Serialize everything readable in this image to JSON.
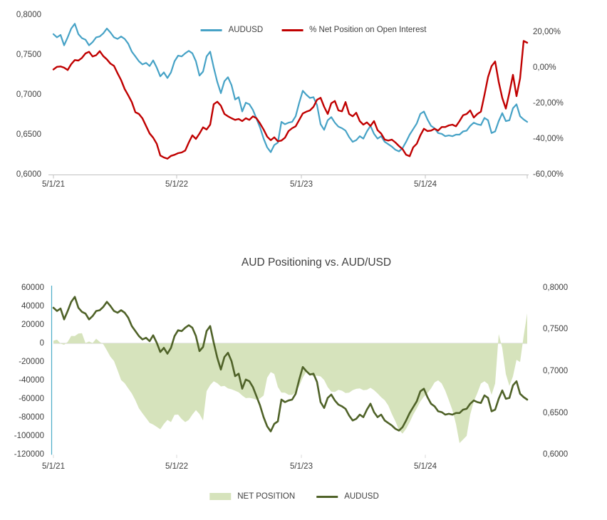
{
  "colors": {
    "audusd_blue": "#46A2C6",
    "net_pct_red": "#C00000",
    "audusd_olive": "#4F6228",
    "net_position_fill": "#D6E3BC",
    "axis_line_blue": "#4BACC6",
    "axis_grey": "#C0C0C0",
    "zero_line_grey": "#D9D9D9",
    "label_text": "#3F3F3F"
  },
  "chart_data": [
    {
      "type": "line",
      "title": "",
      "xlabel": "",
      "ylabel": "",
      "legend_position": "top",
      "grid": false,
      "x_tick_labels": [
        "5/1/21",
        "5/1/22",
        "5/1/23",
        "5/1/24"
      ],
      "left_axis": {
        "range": [
          0.6,
          0.8
        ],
        "ticks": [
          {
            "label": "0,8000",
            "v": 0.8
          },
          {
            "label": "0,7500",
            "v": 0.75
          },
          {
            "label": "0,7000",
            "v": 0.7
          },
          {
            "label": "0,6500",
            "v": 0.65
          },
          {
            "label": "0,6000",
            "v": 0.6
          }
        ]
      },
      "right_axis": {
        "range": [
          -60,
          20
        ],
        "ticks": [
          {
            "label": "20,00%",
            "v": 20
          },
          {
            "label": "0,00%",
            "v": 0
          },
          {
            "label": "-20,00%",
            "v": -20
          },
          {
            "label": "-40,00%",
            "v": -40
          },
          {
            "label": "-60,00%",
            "v": -60
          }
        ]
      },
      "series": [
        {
          "name": "AUDUSD",
          "type": "line",
          "axis": "left",
          "color": "#46A2C6",
          "values": [
            0.776,
            0.772,
            0.775,
            0.762,
            0.772,
            0.783,
            0.789,
            0.776,
            0.771,
            0.769,
            0.762,
            0.766,
            0.772,
            0.773,
            0.777,
            0.783,
            0.778,
            0.772,
            0.77,
            0.773,
            0.77,
            0.764,
            0.754,
            0.748,
            0.742,
            0.738,
            0.74,
            0.736,
            0.743,
            0.734,
            0.723,
            0.728,
            0.721,
            0.728,
            0.742,
            0.749,
            0.748,
            0.752,
            0.755,
            0.752,
            0.742,
            0.724,
            0.729,
            0.748,
            0.754,
            0.734,
            0.716,
            0.702,
            0.717,
            0.722,
            0.712,
            0.694,
            0.697,
            0.679,
            0.69,
            0.688,
            0.681,
            0.67,
            0.659,
            0.645,
            0.634,
            0.628,
            0.637,
            0.64,
            0.666,
            0.663,
            0.665,
            0.666,
            0.673,
            0.69,
            0.705,
            0.7,
            0.696,
            0.697,
            0.687,
            0.663,
            0.656,
            0.668,
            0.672,
            0.665,
            0.66,
            0.658,
            0.655,
            0.647,
            0.641,
            0.643,
            0.648,
            0.645,
            0.654,
            0.661,
            0.651,
            0.645,
            0.648,
            0.641,
            0.638,
            0.635,
            0.631,
            0.629,
            0.633,
            0.641,
            0.65,
            0.657,
            0.664,
            0.676,
            0.679,
            0.669,
            0.661,
            0.658,
            0.652,
            0.651,
            0.648,
            0.649,
            0.648,
            0.65,
            0.65,
            0.654,
            0.655,
            0.661,
            0.665,
            0.663,
            0.662,
            0.671,
            0.668,
            0.652,
            0.654,
            0.667,
            0.677,
            0.667,
            0.668,
            0.683,
            0.688,
            0.673,
            0.669,
            0.666
          ]
        },
        {
          "name": "% Net Position on Open Interest",
          "type": "line",
          "axis": "right",
          "color": "#C00000",
          "values": [
            -1.0,
            0.5,
            0.7,
            0.0,
            -1.3,
            2.0,
            4.3,
            4.0,
            5.5,
            8.0,
            8.9,
            6.3,
            7.0,
            9.3,
            6.5,
            4.7,
            2.3,
            1.0,
            -3.1,
            -7.0,
            -12.0,
            -15.5,
            -19.3,
            -25.0,
            -26.0,
            -28.5,
            -32.7,
            -36.9,
            -39.3,
            -42.7,
            -49.3,
            -50.4,
            -51.1,
            -49.5,
            -48.9,
            -48.0,
            -47.6,
            -46.5,
            -42.0,
            -38.0,
            -40.0,
            -37.0,
            -33.5,
            -34.7,
            -32.0,
            -20.5,
            -19.1,
            -21.3,
            -26.0,
            -27.3,
            -28.4,
            -29.3,
            -28.8,
            -30.0,
            -28.4,
            -29.3,
            -27.3,
            -28.4,
            -31.3,
            -34.7,
            -38.7,
            -40.7,
            -39.1,
            -41.3,
            -40.9,
            -39.3,
            -35.6,
            -34.0,
            -32.9,
            -29.3,
            -25.7,
            -24.7,
            -24.0,
            -22.0,
            -18.0,
            -16.9,
            -22.0,
            -26.0,
            -20.0,
            -18.7,
            -24.0,
            -24.5,
            -19.3,
            -26.0,
            -27.3,
            -25.3,
            -30.0,
            -32.0,
            -30.7,
            -32.7,
            -30.0,
            -35.1,
            -37.0,
            -40.4,
            -40.9,
            -40.4,
            -42.0,
            -44.0,
            -45.7,
            -48.9,
            -49.7,
            -44.7,
            -42.7,
            -38.0,
            -34.3,
            -35.6,
            -35.3,
            -34.3,
            -35.3,
            -33.3,
            -33.3,
            -32.4,
            -32.0,
            -32.9,
            -30.0,
            -26.7,
            -26.0,
            -24.0,
            -28.0,
            -26.0,
            -24.7,
            -15.3,
            -5.3,
            0.9,
            3.5,
            -8.0,
            -17.0,
            -23.0,
            -14.0,
            -4.0,
            -16.0,
            -6.0,
            15.0,
            14.0
          ]
        }
      ]
    },
    {
      "type": "area",
      "title": "AUD Positioning vs. AUD/USD",
      "xlabel": "",
      "ylabel": "",
      "legend_position": "bottom",
      "grid": false,
      "x_tick_labels": [
        "5/1/21",
        "5/1/22",
        "5/1/23",
        "5/1/24"
      ],
      "left_axis": {
        "range": [
          -120000,
          60000
        ],
        "ticks": [
          {
            "label": "60000",
            "v": 60000
          },
          {
            "label": "40000",
            "v": 40000
          },
          {
            "label": "20000",
            "v": 20000
          },
          {
            "label": "0",
            "v": 0
          },
          {
            "label": "-20000",
            "v": -20000
          },
          {
            "label": "-40000",
            "v": -40000
          },
          {
            "label": "-60000",
            "v": -60000
          },
          {
            "label": "-80000",
            "v": -80000
          },
          {
            "label": "-100000",
            "v": -100000
          },
          {
            "label": "-120000",
            "v": -120000
          }
        ]
      },
      "right_axis": {
        "range": [
          0.6,
          0.8
        ],
        "ticks": [
          {
            "label": "0,8000",
            "v": 0.8
          },
          {
            "label": "0,7500",
            "v": 0.75
          },
          {
            "label": "0,7000",
            "v": 0.7
          },
          {
            "label": "0,6500",
            "v": 0.65
          },
          {
            "label": "0,6000",
            "v": 0.6
          }
        ]
      },
      "series": [
        {
          "name": "NET POSITION",
          "type": "area",
          "axis": "left",
          "color": "#D6E3BC",
          "values": [
            2800,
            4100,
            -300,
            -1500,
            1500,
            8000,
            7900,
            10500,
            11000,
            300,
            2000,
            300,
            5000,
            1500,
            -1000,
            -7500,
            -14500,
            -19000,
            -29000,
            -39500,
            -43000,
            -48500,
            -54000,
            -61300,
            -70000,
            -75400,
            -80500,
            -85600,
            -87500,
            -90000,
            -92500,
            -86900,
            -82500,
            -84800,
            -77000,
            -76700,
            -81500,
            -84800,
            -82500,
            -76700,
            -72000,
            -76200,
            -83000,
            -51500,
            -45000,
            -40800,
            -43000,
            -46400,
            -45800,
            -48500,
            -49500,
            -51000,
            -52800,
            -56200,
            -59000,
            -58700,
            -59500,
            -60800,
            -59200,
            -56200,
            -37000,
            -31000,
            -33000,
            -47000,
            -53000,
            -53100,
            -55500,
            -55600,
            -52800,
            -45900,
            -37000,
            -30500,
            -32500,
            -35600,
            -34800,
            -35600,
            -39500,
            -47200,
            -52000,
            -52300,
            -50000,
            -51000,
            -53500,
            -53100,
            -50500,
            -49000,
            -48500,
            -50500,
            -50000,
            -47900,
            -50500,
            -54000,
            -58000,
            -61300,
            -67000,
            -76000,
            -84000,
            -93300,
            -97200,
            -92100,
            -85000,
            -76700,
            -70000,
            -62600,
            -57500,
            -53600,
            -48500,
            -42100,
            -39800,
            -43300,
            -51000,
            -61300,
            -72000,
            -86900,
            -107400,
            -103600,
            -99700,
            -76700,
            -62600,
            -53600,
            -43300,
            -40800,
            -44000,
            -55400,
            -43300,
            10000,
            -5000,
            -33100,
            -45900,
            -35600,
            -17700,
            -20200,
            7900,
            32300
          ]
        },
        {
          "name": "AUDUSD",
          "type": "line",
          "axis": "right",
          "color": "#4F6228",
          "values": [
            0.776,
            0.772,
            0.775,
            0.762,
            0.772,
            0.783,
            0.789,
            0.776,
            0.771,
            0.769,
            0.762,
            0.766,
            0.772,
            0.773,
            0.777,
            0.783,
            0.778,
            0.772,
            0.77,
            0.773,
            0.77,
            0.764,
            0.754,
            0.748,
            0.742,
            0.738,
            0.74,
            0.736,
            0.743,
            0.734,
            0.723,
            0.728,
            0.721,
            0.728,
            0.742,
            0.749,
            0.748,
            0.752,
            0.755,
            0.752,
            0.742,
            0.724,
            0.729,
            0.748,
            0.754,
            0.734,
            0.716,
            0.702,
            0.717,
            0.722,
            0.712,
            0.694,
            0.697,
            0.679,
            0.69,
            0.688,
            0.681,
            0.67,
            0.659,
            0.645,
            0.634,
            0.628,
            0.637,
            0.64,
            0.666,
            0.663,
            0.665,
            0.666,
            0.673,
            0.69,
            0.705,
            0.7,
            0.696,
            0.697,
            0.687,
            0.663,
            0.656,
            0.668,
            0.672,
            0.665,
            0.66,
            0.658,
            0.655,
            0.647,
            0.641,
            0.643,
            0.648,
            0.645,
            0.654,
            0.661,
            0.651,
            0.645,
            0.648,
            0.641,
            0.638,
            0.635,
            0.631,
            0.629,
            0.633,
            0.641,
            0.65,
            0.657,
            0.664,
            0.676,
            0.679,
            0.669,
            0.661,
            0.658,
            0.652,
            0.651,
            0.648,
            0.649,
            0.648,
            0.65,
            0.65,
            0.654,
            0.655,
            0.661,
            0.665,
            0.663,
            0.662,
            0.671,
            0.668,
            0.652,
            0.654,
            0.667,
            0.677,
            0.667,
            0.668,
            0.683,
            0.688,
            0.673,
            0.669,
            0.666
          ]
        }
      ]
    }
  ]
}
